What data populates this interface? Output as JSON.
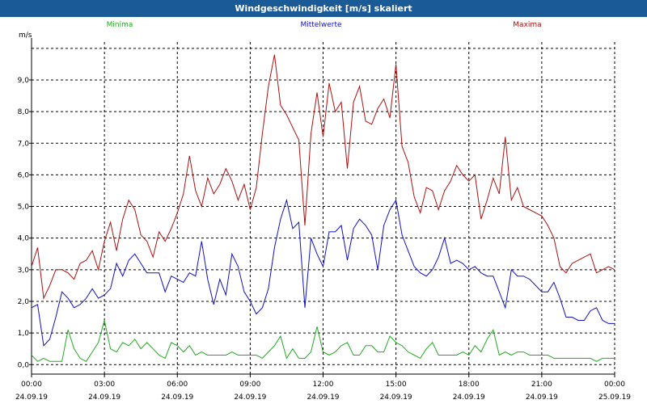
{
  "window": {
    "title": "Windgeschwindigkeit [m/s] skaliert"
  },
  "legend": [
    {
      "name": "Minima",
      "color": "#22aa22"
    },
    {
      "name": "Mittelwerte",
      "color": "#1111bb"
    },
    {
      "name": "Maxima",
      "color": "#aa1111"
    }
  ],
  "chart_data": {
    "type": "line",
    "title": "Windgeschwindigkeit [m/s] skaliert",
    "ylabel": "m/s",
    "xlabel": "",
    "xlim": [
      "24.09.19 00:00",
      "25.09.19 00:00"
    ],
    "ylim": [
      -0.3,
      10.2
    ],
    "grid": true,
    "legend_position": "top",
    "x_tick_labels": [
      {
        "time": "00:00",
        "date": "24.09.19"
      },
      {
        "time": "03:00",
        "date": "24.09.19"
      },
      {
        "time": "06:00",
        "date": "24.09.19"
      },
      {
        "time": "09:00",
        "date": "24.09.19"
      },
      {
        "time": "12:00",
        "date": "24.09.19"
      },
      {
        "time": "15:00",
        "date": "24.09.19"
      },
      {
        "time": "18:00",
        "date": "24.09.19"
      },
      {
        "time": "21:00",
        "date": "24.09.19"
      },
      {
        "time": "00:00",
        "date": "25.09.19"
      }
    ],
    "y_ticks": [
      0,
      1,
      2,
      3,
      4,
      5,
      6,
      7,
      8,
      9
    ],
    "y_tick_labels": [
      "0,0",
      "1,0",
      "2,0",
      "3,0",
      "4,0",
      "5,0",
      "6,0",
      "7,0",
      "8,0",
      "9,0"
    ],
    "series": [
      {
        "name": "Maxima",
        "color": "#aa1111",
        "x": [
          "24.09.19 00:00",
          "24.09.19 00:15",
          "24.09.19 00:30",
          "24.09.19 00:45",
          "24.09.19 01:00",
          "24.09.19 01:15",
          "24.09.19 01:30",
          "24.09.19 01:45",
          "24.09.19 02:00",
          "24.09.19 02:15",
          "24.09.19 02:30",
          "24.09.19 02:45",
          "24.09.19 03:00",
          "24.09.19 03:15",
          "24.09.19 03:30",
          "24.09.19 03:45",
          "24.09.19 04:00",
          "24.09.19 04:15",
          "24.09.19 04:30",
          "24.09.19 04:45",
          "24.09.19 05:00",
          "24.09.19 05:15",
          "24.09.19 05:30",
          "24.09.19 05:45",
          "24.09.19 06:00",
          "24.09.19 06:15",
          "24.09.19 06:30",
          "24.09.19 06:45",
          "24.09.19 07:00",
          "24.09.19 07:15",
          "24.09.19 07:30",
          "24.09.19 07:45",
          "24.09.19 08:00",
          "24.09.19 08:15",
          "24.09.19 08:30",
          "24.09.19 08:45",
          "24.09.19 09:00",
          "24.09.19 09:15",
          "24.09.19 09:30",
          "24.09.19 09:45",
          "24.09.19 10:00",
          "24.09.19 10:15",
          "24.09.19 10:30",
          "24.09.19 10:45",
          "24.09.19 11:00",
          "24.09.19 11:15",
          "24.09.19 11:30",
          "24.09.19 11:45",
          "24.09.19 12:00",
          "24.09.19 12:15",
          "24.09.19 12:30",
          "24.09.19 12:45",
          "24.09.19 13:00",
          "24.09.19 13:15",
          "24.09.19 13:30",
          "24.09.19 13:45",
          "24.09.19 14:00",
          "24.09.19 14:15",
          "24.09.19 14:30",
          "24.09.19 14:45",
          "24.09.19 15:00",
          "24.09.19 15:15",
          "24.09.19 15:30",
          "24.09.19 15:45",
          "24.09.19 16:00",
          "24.09.19 16:15",
          "24.09.19 16:30",
          "24.09.19 16:45",
          "24.09.19 17:00",
          "24.09.19 17:15",
          "24.09.19 17:30",
          "24.09.19 17:45",
          "24.09.19 18:00",
          "24.09.19 18:15",
          "24.09.19 18:30",
          "24.09.19 18:45",
          "24.09.19 19:00",
          "24.09.19 19:15",
          "24.09.19 19:30",
          "24.09.19 19:45",
          "24.09.19 20:00",
          "24.09.19 20:15",
          "24.09.19 20:30",
          "24.09.19 20:45",
          "24.09.19 21:00",
          "24.09.19 21:15",
          "24.09.19 21:30",
          "24.09.19 21:45",
          "24.09.19 22:00",
          "24.09.19 22:15",
          "24.09.19 22:30",
          "24.09.19 22:45",
          "24.09.19 23:00",
          "24.09.19 23:15",
          "24.09.19 23:30",
          "24.09.19 23:45",
          "25.09.19 00:00"
        ],
        "values": [
          3.1,
          3.7,
          2.1,
          2.5,
          3.0,
          3.0,
          2.9,
          2.7,
          3.2,
          3.3,
          3.6,
          3.0,
          3.9,
          4.5,
          3.6,
          4.6,
          5.2,
          4.9,
          4.1,
          3.9,
          3.4,
          4.2,
          3.9,
          4.3,
          4.8,
          5.4,
          6.6,
          5.5,
          5.0,
          5.9,
          5.4,
          5.7,
          6.2,
          5.8,
          5.2,
          5.7,
          4.9,
          5.6,
          7.3,
          8.8,
          9.8,
          8.2,
          7.9,
          7.5,
          7.1,
          4.4,
          7.3,
          8.6,
          7.2,
          8.9,
          8.0,
          8.3,
          6.2,
          8.3,
          8.8,
          7.7,
          7.6,
          8.1,
          8.4,
          7.8,
          9.5,
          6.9,
          6.4,
          5.3,
          4.8,
          5.6,
          5.5,
          4.9,
          5.5,
          5.8,
          6.3,
          6.0,
          5.8,
          6.0,
          4.6,
          5.2,
          5.9,
          5.4,
          7.2,
          5.2,
          5.6,
          5.0,
          4.9,
          4.8,
          4.7,
          4.4,
          4.0,
          3.1,
          2.9,
          3.2,
          3.3,
          3.4,
          3.5,
          2.9,
          3.0,
          3.1,
          3.0
        ]
      },
      {
        "name": "Mittelwerte",
        "color": "#1111bb",
        "x": [
          "24.09.19 00:00",
          "24.09.19 00:15",
          "24.09.19 00:30",
          "24.09.19 00:45",
          "24.09.19 01:00",
          "24.09.19 01:15",
          "24.09.19 01:30",
          "24.09.19 01:45",
          "24.09.19 02:00",
          "24.09.19 02:15",
          "24.09.19 02:30",
          "24.09.19 02:45",
          "24.09.19 03:00",
          "24.09.19 03:15",
          "24.09.19 03:30",
          "24.09.19 03:45",
          "24.09.19 04:00",
          "24.09.19 04:15",
          "24.09.19 04:30",
          "24.09.19 04:45",
          "24.09.19 05:00",
          "24.09.19 05:15",
          "24.09.19 05:30",
          "24.09.19 05:45",
          "24.09.19 06:00",
          "24.09.19 06:15",
          "24.09.19 06:30",
          "24.09.19 06:45",
          "24.09.19 07:00",
          "24.09.19 07:15",
          "24.09.19 07:30",
          "24.09.19 07:45",
          "24.09.19 08:00",
          "24.09.19 08:15",
          "24.09.19 08:30",
          "24.09.19 08:45",
          "24.09.19 09:00",
          "24.09.19 09:15",
          "24.09.19 09:30",
          "24.09.19 09:45",
          "24.09.19 10:00",
          "24.09.19 10:15",
          "24.09.19 10:30",
          "24.09.19 10:45",
          "24.09.19 11:00",
          "24.09.19 11:15",
          "24.09.19 11:30",
          "24.09.19 11:45",
          "24.09.19 12:00",
          "24.09.19 12:15",
          "24.09.19 12:30",
          "24.09.19 12:45",
          "24.09.19 13:00",
          "24.09.19 13:15",
          "24.09.19 13:30",
          "24.09.19 13:45",
          "24.09.19 14:00",
          "24.09.19 14:15",
          "24.09.19 14:30",
          "24.09.19 14:45",
          "24.09.19 15:00",
          "24.09.19 15:15",
          "24.09.19 15:30",
          "24.09.19 15:45",
          "24.09.19 16:00",
          "24.09.19 16:15",
          "24.09.19 16:30",
          "24.09.19 16:45",
          "24.09.19 17:00",
          "24.09.19 17:15",
          "24.09.19 17:30",
          "24.09.19 17:45",
          "24.09.19 18:00",
          "24.09.19 18:15",
          "24.09.19 18:30",
          "24.09.19 18:45",
          "24.09.19 19:00",
          "24.09.19 19:15",
          "24.09.19 19:30",
          "24.09.19 19:45",
          "24.09.19 20:00",
          "24.09.19 20:15",
          "24.09.19 20:30",
          "24.09.19 20:45",
          "24.09.19 21:00",
          "24.09.19 21:15",
          "24.09.19 21:30",
          "24.09.19 21:45",
          "24.09.19 22:00",
          "24.09.19 22:15",
          "24.09.19 22:30",
          "24.09.19 22:45",
          "24.09.19 23:00",
          "24.09.19 23:15",
          "24.09.19 23:30",
          "24.09.19 23:45",
          "25.09.19 00:00"
        ],
        "values": [
          1.8,
          1.9,
          0.6,
          0.8,
          1.5,
          2.3,
          2.1,
          1.8,
          1.9,
          2.1,
          2.4,
          2.1,
          2.2,
          2.4,
          3.2,
          2.8,
          3.3,
          3.5,
          3.2,
          2.9,
          2.9,
          2.9,
          2.3,
          2.8,
          2.7,
          2.6,
          2.9,
          2.8,
          3.9,
          2.7,
          1.9,
          2.7,
          2.2,
          3.5,
          3.1,
          2.3,
          2.0,
          1.6,
          1.8,
          2.4,
          3.7,
          4.6,
          5.2,
          4.3,
          4.5,
          1.8,
          4.0,
          3.5,
          3.1,
          4.2,
          4.2,
          4.4,
          3.3,
          4.3,
          4.6,
          4.4,
          4.1,
          3.0,
          4.4,
          4.9,
          5.2,
          4.1,
          3.6,
          3.1,
          2.9,
          2.8,
          3.0,
          3.4,
          4.0,
          3.2,
          3.3,
          3.2,
          3.0,
          3.1,
          2.9,
          2.8,
          2.8,
          2.3,
          1.8,
          3.0,
          2.8,
          2.8,
          2.7,
          2.5,
          2.3,
          2.3,
          2.6,
          2.1,
          1.5,
          1.5,
          1.4,
          1.4,
          1.7,
          1.8,
          1.4,
          1.3,
          1.3
        ]
      },
      {
        "name": "Minima",
        "color": "#22aa22",
        "x": [
          "24.09.19 00:00",
          "24.09.19 00:15",
          "24.09.19 00:30",
          "24.09.19 00:45",
          "24.09.19 01:00",
          "24.09.19 01:15",
          "24.09.19 01:30",
          "24.09.19 01:45",
          "24.09.19 02:00",
          "24.09.19 02:15",
          "24.09.19 02:30",
          "24.09.19 02:45",
          "24.09.19 03:00",
          "24.09.19 03:15",
          "24.09.19 03:30",
          "24.09.19 03:45",
          "24.09.19 04:00",
          "24.09.19 04:15",
          "24.09.19 04:30",
          "24.09.19 04:45",
          "24.09.19 05:00",
          "24.09.19 05:15",
          "24.09.19 05:30",
          "24.09.19 05:45",
          "24.09.19 06:00",
          "24.09.19 06:15",
          "24.09.19 06:30",
          "24.09.19 06:45",
          "24.09.19 07:00",
          "24.09.19 07:15",
          "24.09.19 07:30",
          "24.09.19 07:45",
          "24.09.19 08:00",
          "24.09.19 08:15",
          "24.09.19 08:30",
          "24.09.19 08:45",
          "24.09.19 09:00",
          "24.09.19 09:15",
          "24.09.19 09:30",
          "24.09.19 09:45",
          "24.09.19 10:00",
          "24.09.19 10:15",
          "24.09.19 10:30",
          "24.09.19 10:45",
          "24.09.19 11:00",
          "24.09.19 11:15",
          "24.09.19 11:30",
          "24.09.19 11:45",
          "24.09.19 12:00",
          "24.09.19 12:15",
          "24.09.19 12:30",
          "24.09.19 12:45",
          "24.09.19 13:00",
          "24.09.19 13:15",
          "24.09.19 13:30",
          "24.09.19 13:45",
          "24.09.19 14:00",
          "24.09.19 14:15",
          "24.09.19 14:30",
          "24.09.19 14:45",
          "24.09.19 15:00",
          "24.09.19 15:15",
          "24.09.19 15:30",
          "24.09.19 15:45",
          "24.09.19 16:00",
          "24.09.19 16:15",
          "24.09.19 16:30",
          "24.09.19 16:45",
          "24.09.19 17:00",
          "24.09.19 17:15",
          "24.09.19 17:30",
          "24.09.19 17:45",
          "24.09.19 18:00",
          "24.09.19 18:15",
          "24.09.19 18:30",
          "24.09.19 18:45",
          "24.09.19 19:00",
          "24.09.19 19:15",
          "24.09.19 19:30",
          "24.09.19 19:45",
          "24.09.19 20:00",
          "24.09.19 20:15",
          "24.09.19 20:30",
          "24.09.19 20:45",
          "24.09.19 21:00",
          "24.09.19 21:15",
          "24.09.19 21:30",
          "24.09.19 21:45",
          "24.09.19 22:00",
          "24.09.19 22:15",
          "24.09.19 22:30",
          "24.09.19 22:45",
          "24.09.19 23:00",
          "24.09.19 23:15",
          "24.09.19 23:30",
          "24.09.19 23:45",
          "25.09.19 00:00"
        ],
        "values": [
          0.3,
          0.1,
          0.2,
          0.1,
          0.1,
          0.1,
          1.1,
          0.5,
          0.2,
          0.1,
          0.4,
          0.7,
          1.4,
          0.5,
          0.4,
          0.7,
          0.6,
          0.8,
          0.5,
          0.7,
          0.5,
          0.3,
          0.2,
          0.7,
          0.6,
          0.4,
          0.6,
          0.3,
          0.4,
          0.3,
          0.3,
          0.3,
          0.3,
          0.4,
          0.3,
          0.3,
          0.3,
          0.3,
          0.2,
          0.4,
          0.6,
          0.9,
          0.2,
          0.5,
          0.2,
          0.2,
          0.4,
          1.2,
          0.4,
          0.3,
          0.4,
          0.6,
          0.7,
          0.3,
          0.3,
          0.6,
          0.6,
          0.4,
          0.4,
          0.9,
          0.7,
          0.6,
          0.4,
          0.3,
          0.2,
          0.5,
          0.7,
          0.3,
          0.3,
          0.3,
          0.3,
          0.4,
          0.3,
          0.6,
          0.4,
          0.8,
          1.1,
          0.3,
          0.4,
          0.3,
          0.4,
          0.4,
          0.3,
          0.3,
          0.3,
          0.3,
          0.2,
          0.2,
          0.2,
          0.2,
          0.2,
          0.2,
          0.2,
          0.1,
          0.2,
          0.2,
          0.2
        ]
      }
    ]
  }
}
